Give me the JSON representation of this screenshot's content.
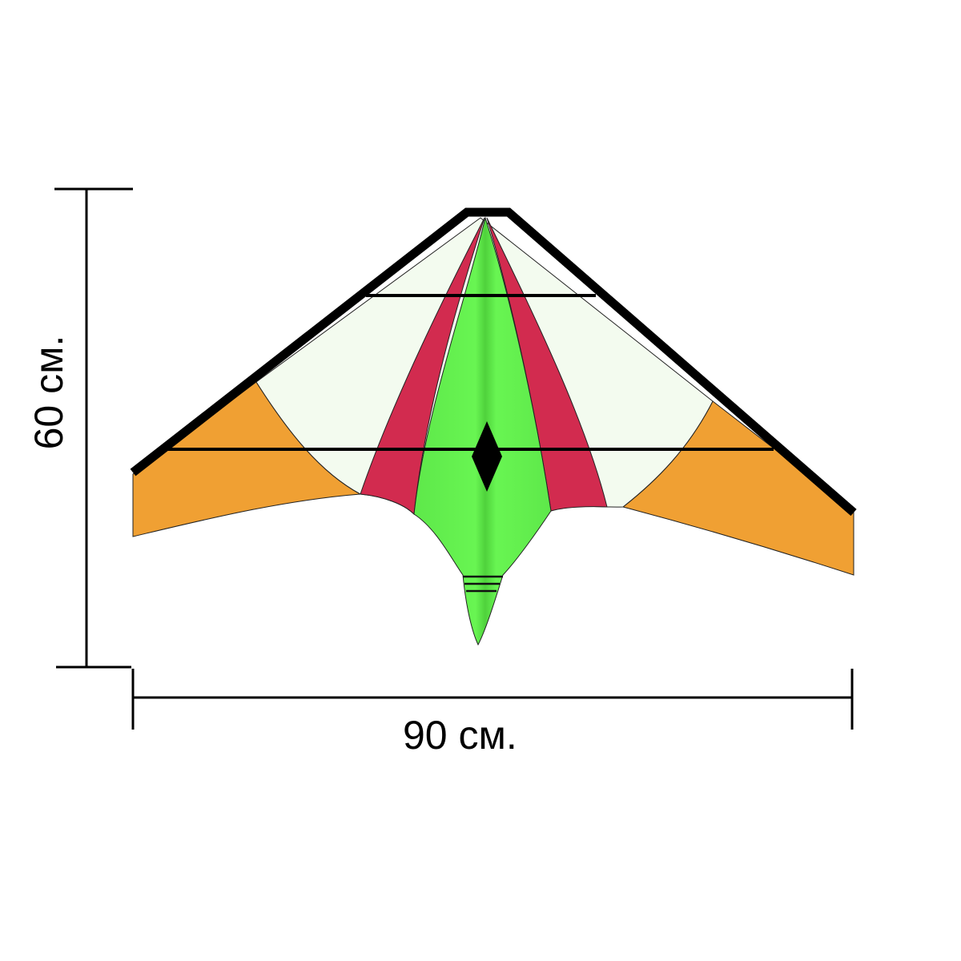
{
  "dimensions": {
    "width_label": "90 см.",
    "height_label": "60 см."
  },
  "colors": {
    "sail_white": "#f3fbef",
    "wing_orange": "#f0a033",
    "stripe_red": "#d22b4f",
    "center_green": "#62f04c",
    "frame_black": "#000000"
  },
  "icons": [
    "kite-illustration",
    "diamond-icon"
  ]
}
